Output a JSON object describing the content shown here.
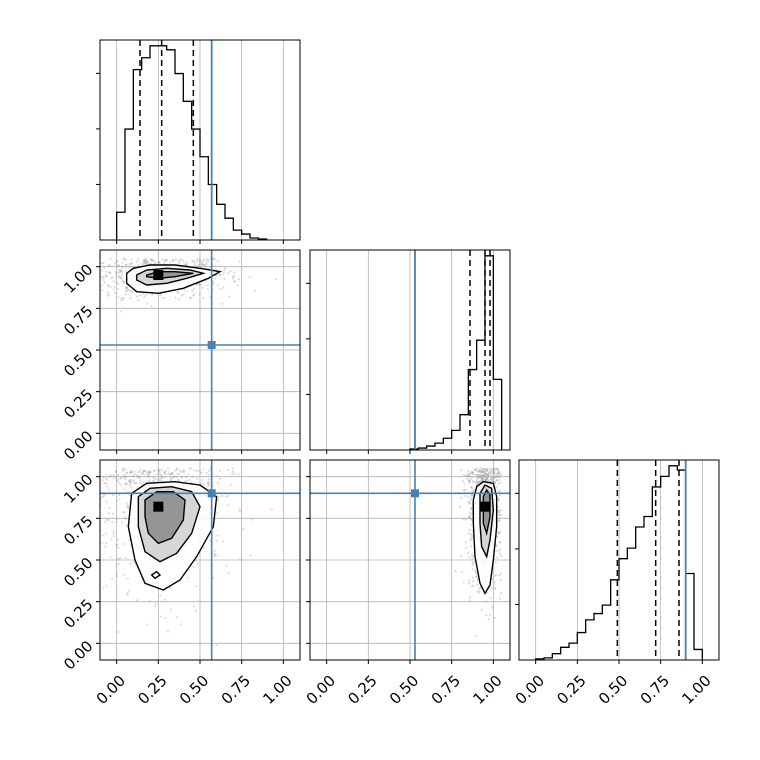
{
  "chart_data": {
    "type": "corner",
    "parameters": 3,
    "axis_range": [
      -0.1,
      1.1
    ],
    "ticks": [
      0.0,
      0.25,
      0.5,
      0.75,
      1.0
    ],
    "tick_labels": [
      "0.00",
      "0.25",
      "0.50",
      "0.75",
      "1.00"
    ],
    "grid": true,
    "truth": [
      0.57,
      0.53,
      0.9
    ],
    "colors": {
      "truth": "#4682b4",
      "histogram": "#000000",
      "contour": "#000000",
      "grid": "#b0b0b0"
    },
    "histograms": [
      {
        "bin_edges": [
          0.0,
          0.05,
          0.1,
          0.15,
          0.2,
          0.25,
          0.3,
          0.35,
          0.4,
          0.45,
          0.5,
          0.55,
          0.6,
          0.65,
          0.7,
          0.75,
          0.8,
          0.85,
          0.9
        ],
        "counts": [
          0.14,
          0.56,
          0.86,
          0.92,
          0.98,
          0.98,
          0.96,
          0.84,
          0.7,
          0.56,
          0.42,
          0.28,
          0.18,
          0.11,
          0.05,
          0.03,
          0.01,
          0.005
        ],
        "quantiles": [
          0.14,
          0.27,
          0.46
        ]
      },
      {
        "bin_edges": [
          0.5,
          0.55,
          0.6,
          0.65,
          0.7,
          0.75,
          0.8,
          0.85,
          0.9,
          0.95,
          1.0,
          1.05
        ],
        "counts": [
          0.005,
          0.01,
          0.02,
          0.035,
          0.06,
          0.1,
          0.18,
          0.41,
          0.56,
          0.99,
          0.36
        ],
        "quantiles": [
          0.86,
          0.95,
          0.98
        ]
      },
      {
        "bin_edges": [
          0.0,
          0.05,
          0.1,
          0.15,
          0.2,
          0.25,
          0.3,
          0.35,
          0.4,
          0.45,
          0.5,
          0.55,
          0.6,
          0.65,
          0.7,
          0.75,
          0.8,
          0.85,
          0.9,
          0.95,
          1.0
        ],
        "counts": [
          0.005,
          0.01,
          0.03,
          0.06,
          0.08,
          0.13,
          0.19,
          0.22,
          0.26,
          0.38,
          0.48,
          0.53,
          0.63,
          0.68,
          0.82,
          0.87,
          0.92,
          0.9,
          0.41,
          0.05
        ],
        "quantiles": [
          0.49,
          0.72,
          0.86
        ]
      }
    ],
    "pairs": [
      {
        "row": 1,
        "col": 0,
        "density_peak": [
          0.25,
          0.95
        ],
        "contours": [
          [
            [
              0.06,
              0.96
            ],
            [
              0.1,
              0.99
            ],
            [
              0.2,
              1.01
            ],
            [
              0.35,
              1.01
            ],
            [
              0.5,
              0.99
            ],
            [
              0.62,
              0.97
            ],
            [
              0.55,
              0.93
            ],
            [
              0.4,
              0.87
            ],
            [
              0.25,
              0.84
            ],
            [
              0.12,
              0.85
            ],
            [
              0.06,
              0.9
            ],
            [
              0.06,
              0.96
            ]
          ],
          [
            [
              0.12,
              0.95
            ],
            [
              0.18,
              0.98
            ],
            [
              0.3,
              0.99
            ],
            [
              0.44,
              0.98
            ],
            [
              0.52,
              0.96
            ],
            [
              0.42,
              0.93
            ],
            [
              0.3,
              0.9
            ],
            [
              0.18,
              0.89
            ],
            [
              0.12,
              0.92
            ],
            [
              0.12,
              0.95
            ]
          ],
          [
            [
              0.18,
              0.95
            ],
            [
              0.25,
              0.97
            ],
            [
              0.35,
              0.97
            ],
            [
              0.46,
              0.96
            ],
            [
              0.35,
              0.94
            ],
            [
              0.25,
              0.93
            ],
            [
              0.18,
              0.94
            ],
            [
              0.18,
              0.95
            ]
          ]
        ]
      },
      {
        "row": 2,
        "col": 0,
        "density_peak": [
          0.25,
          0.82
        ],
        "contours": [
          [
            [
              0.09,
              0.9
            ],
            [
              0.18,
              0.96
            ],
            [
              0.35,
              0.97
            ],
            [
              0.5,
              0.95
            ],
            [
              0.6,
              0.88
            ],
            [
              0.58,
              0.7
            ],
            [
              0.48,
              0.52
            ],
            [
              0.38,
              0.38
            ],
            [
              0.28,
              0.32
            ],
            [
              0.17,
              0.36
            ],
            [
              0.11,
              0.5
            ],
            [
              0.07,
              0.7
            ],
            [
              0.09,
              0.9
            ]
          ],
          [
            [
              0.13,
              0.88
            ],
            [
              0.2,
              0.93
            ],
            [
              0.33,
              0.94
            ],
            [
              0.45,
              0.91
            ],
            [
              0.5,
              0.82
            ],
            [
              0.45,
              0.66
            ],
            [
              0.36,
              0.54
            ],
            [
              0.26,
              0.49
            ],
            [
              0.17,
              0.55
            ],
            [
              0.13,
              0.7
            ],
            [
              0.13,
              0.88
            ]
          ],
          [
            [
              0.17,
              0.86
            ],
            [
              0.24,
              0.91
            ],
            [
              0.34,
              0.91
            ],
            [
              0.41,
              0.86
            ],
            [
              0.4,
              0.74
            ],
            [
              0.33,
              0.63
            ],
            [
              0.25,
              0.6
            ],
            [
              0.19,
              0.66
            ],
            [
              0.17,
              0.76
            ],
            [
              0.17,
              0.86
            ]
          ],
          [
            [
              0.21,
              0.41
            ],
            [
              0.24,
              0.43
            ],
            [
              0.26,
              0.41
            ],
            [
              0.23,
              0.39
            ],
            [
              0.21,
              0.41
            ]
          ]
        ]
      },
      {
        "row": 2,
        "col": 1,
        "density_peak": [
          0.95,
          0.82
        ],
        "contours": [
          [
            [
              0.9,
              0.94
            ],
            [
              0.94,
              0.97
            ],
            [
              1.0,
              0.96
            ],
            [
              1.02,
              0.88
            ],
            [
              1.02,
              0.7
            ],
            [
              1.0,
              0.5
            ],
            [
              0.98,
              0.35
            ],
            [
              0.95,
              0.3
            ],
            [
              0.92,
              0.36
            ],
            [
              0.89,
              0.52
            ],
            [
              0.88,
              0.72
            ],
            [
              0.88,
              0.86
            ],
            [
              0.9,
              0.94
            ]
          ],
          [
            [
              0.92,
              0.9
            ],
            [
              0.95,
              0.95
            ],
            [
              0.99,
              0.93
            ],
            [
              1.0,
              0.8
            ],
            [
              0.98,
              0.62
            ],
            [
              0.96,
              0.52
            ],
            [
              0.93,
              0.58
            ],
            [
              0.92,
              0.72
            ],
            [
              0.92,
              0.9
            ]
          ],
          [
            [
              0.94,
              0.88
            ],
            [
              0.96,
              0.92
            ],
            [
              0.98,
              0.89
            ],
            [
              0.98,
              0.76
            ],
            [
              0.96,
              0.66
            ],
            [
              0.94,
              0.72
            ],
            [
              0.94,
              0.88
            ]
          ]
        ]
      }
    ]
  }
}
